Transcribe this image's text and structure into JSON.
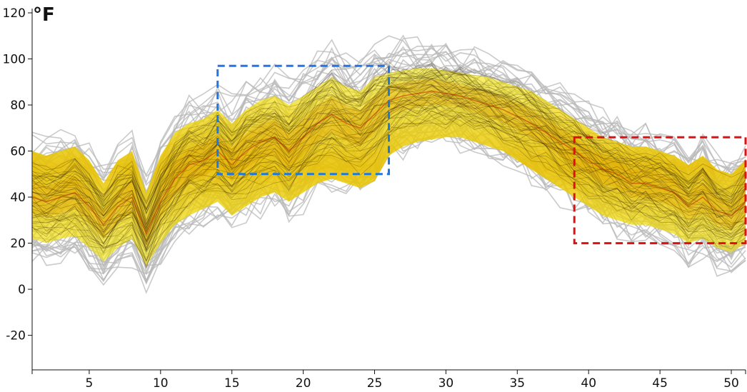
{
  "chart_data": {
    "type": "line",
    "title": "",
    "ylabel": "°F",
    "xlabel": "",
    "xlim": [
      1,
      51
    ],
    "ylim": [
      -35,
      120
    ],
    "x_ticks": [
      5,
      10,
      15,
      20,
      25,
      30,
      35,
      40,
      45,
      50
    ],
    "y_ticks": [
      -20,
      0,
      20,
      40,
      60,
      80,
      100,
      120
    ],
    "grid": false,
    "colors": {
      "lines": "#b8b8b8",
      "density_low": "#f2e600",
      "density_mid": "#e0a000",
      "density_high": "#c03000",
      "highlight_blue": "#1f78e0",
      "highlight_red": "#e01010"
    },
    "density_band": {
      "x": [
        1,
        2,
        3,
        4,
        5,
        6,
        7,
        8,
        9,
        10,
        11,
        12,
        13,
        14,
        15,
        16,
        17,
        18,
        19,
        20,
        21,
        22,
        23,
        24,
        25,
        26,
        27,
        28,
        29,
        30,
        31,
        32,
        33,
        34,
        35,
        36,
        37,
        38,
        39,
        40,
        41,
        42,
        43,
        44,
        45,
        46,
        47,
        48,
        49,
        50,
        51
      ],
      "lower": [
        22,
        20,
        22,
        23,
        18,
        12,
        18,
        22,
        10,
        20,
        28,
        32,
        35,
        38,
        32,
        36,
        40,
        42,
        38,
        42,
        46,
        48,
        46,
        44,
        47,
        58,
        62,
        64,
        65,
        66,
        66,
        64,
        62,
        60,
        56,
        52,
        48,
        44,
        40,
        36,
        32,
        30,
        28,
        28,
        26,
        24,
        20,
        22,
        18,
        16,
        20
      ],
      "center": [
        40,
        38,
        40,
        42,
        36,
        28,
        36,
        40,
        24,
        38,
        48,
        54,
        56,
        60,
        54,
        60,
        64,
        66,
        60,
        66,
        72,
        76,
        72,
        70,
        76,
        82,
        84,
        85,
        86,
        85,
        84,
        82,
        80,
        78,
        75,
        72,
        68,
        64,
        60,
        56,
        52,
        50,
        46,
        46,
        44,
        42,
        36,
        40,
        34,
        32,
        38
      ],
      "upper": [
        60,
        58,
        60,
        62,
        56,
        46,
        56,
        60,
        42,
        58,
        68,
        72,
        74,
        78,
        72,
        78,
        82,
        84,
        80,
        84,
        88,
        92,
        88,
        86,
        92,
        94,
        95,
        96,
        96,
        95,
        94,
        93,
        92,
        90,
        88,
        86,
        82,
        78,
        74,
        70,
        66,
        64,
        62,
        62,
        60,
        58,
        54,
        58,
        52,
        50,
        56
      ]
    },
    "highlights": [
      {
        "color": "blue",
        "x_range": [
          14,
          26
        ],
        "y_range": [
          50,
          97
        ]
      },
      {
        "color": "red",
        "x_range": [
          39,
          51
        ],
        "y_range": [
          20,
          66
        ]
      }
    ]
  }
}
